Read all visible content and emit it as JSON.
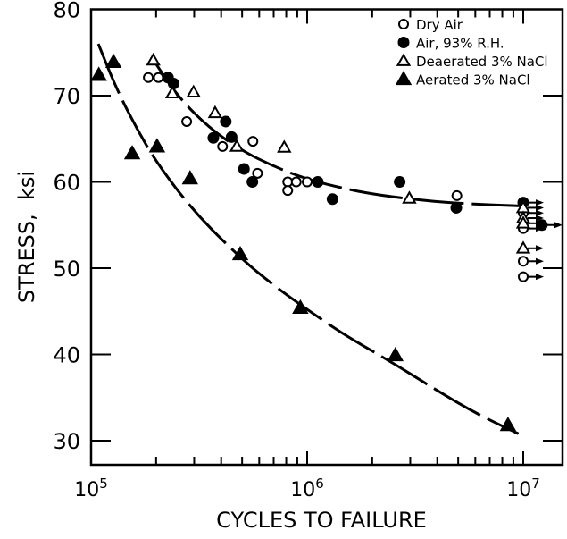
{
  "chart_data": {
    "type": "scatter",
    "title": "",
    "xlabel": "CYCLES TO FAILURE",
    "ylabel": "STRESS,  ksi",
    "xscale": "log",
    "xlim": [
      100000,
      15500000
    ],
    "ylim": [
      27.2,
      80
    ],
    "x_ticks": [
      {
        "value": 100000,
        "base": "10",
        "exp": "5"
      },
      {
        "value": 1000000,
        "base": "10",
        "exp": "6"
      },
      {
        "value": 10000000,
        "base": "10",
        "exp": "7"
      }
    ],
    "y_ticks": [
      30,
      40,
      50,
      60,
      70,
      80
    ],
    "grid": false,
    "legend_position": "top-right",
    "series": [
      {
        "name": "Dry Air",
        "marker": "open-circle",
        "points": [
          [
            184000,
            72.1
          ],
          [
            205000,
            72.1
          ],
          [
            277000,
            67.0
          ],
          [
            406000,
            64.1
          ],
          [
            561000,
            64.7
          ],
          [
            589000,
            61.0
          ],
          [
            813000,
            60.0
          ],
          [
            813000,
            59.0
          ],
          [
            890000,
            60.0
          ],
          [
            1000000,
            60.0
          ],
          [
            4930000,
            58.4
          ]
        ],
        "runouts": [
          [
            10000000,
            56.4
          ],
          [
            10000000,
            54.6
          ],
          [
            10000000,
            50.8
          ],
          [
            10000000,
            49.0
          ]
        ]
      },
      {
        "name": "Air, 93% R.H.",
        "marker": "filled-circle",
        "points": [
          [
            227000,
            72.1
          ],
          [
            241000,
            71.4
          ],
          [
            420000,
            67.0
          ],
          [
            368000,
            65.1
          ],
          [
            447000,
            65.2
          ],
          [
            510000,
            61.5
          ],
          [
            558000,
            60.0
          ],
          [
            1120000,
            60.0
          ],
          [
            1310000,
            58.0
          ],
          [
            2680000,
            60.0
          ],
          [
            4900000,
            57.0
          ]
        ],
        "runouts": [
          [
            10000000,
            57.6
          ],
          [
            12200000,
            55.0
          ]
        ]
      },
      {
        "name": "Deaerated 3% NaCl",
        "marker": "open-triangle",
        "points": [
          [
            194000,
            74.1
          ],
          [
            238000,
            70.3
          ],
          [
            298000,
            70.4
          ],
          [
            375000,
            68.0
          ],
          [
            472000,
            64.1
          ],
          [
            783000,
            64.0
          ],
          [
            2970000,
            58.1
          ]
        ],
        "runouts": [
          [
            10000000,
            57.0
          ],
          [
            10000000,
            55.8
          ],
          [
            10000000,
            55.2
          ],
          [
            10000000,
            52.3
          ]
        ]
      },
      {
        "name": "Aerated 3% NaCl",
        "marker": "filled-triangle",
        "points": [
          [
            108600,
            72.4
          ],
          [
            127000,
            73.9
          ],
          [
            155000,
            63.3
          ],
          [
            202000,
            64.1
          ],
          [
            287000,
            60.4
          ],
          [
            490000,
            51.6
          ],
          [
            930000,
            45.4
          ],
          [
            2560000,
            39.9
          ],
          [
            8500000,
            31.8
          ]
        ],
        "runouts": []
      }
    ],
    "curves": [
      {
        "points": [
          [
            190000,
            74.5
          ],
          [
            250000,
            70.0
          ],
          [
            350000,
            66.3
          ],
          [
            500000,
            63.6
          ],
          [
            700000,
            61.8
          ],
          [
            1000000,
            60.3
          ],
          [
            1500000,
            59.2
          ],
          [
            2000000,
            58.6
          ],
          [
            3000000,
            58.0
          ],
          [
            5000000,
            57.5
          ],
          [
            10000000,
            57.2
          ]
        ]
      },
      {
        "points": [
          [
            108000,
            76.0
          ],
          [
            130000,
            71.0
          ],
          [
            160000,
            66.5
          ],
          [
            200000,
            62.3
          ],
          [
            300000,
            56.5
          ],
          [
            500000,
            51.0
          ],
          [
            700000,
            48.0
          ],
          [
            1000000,
            45.2
          ],
          [
            1500000,
            42.2
          ],
          [
            2500000,
            39.0
          ],
          [
            4000000,
            35.8
          ],
          [
            6000000,
            33.2
          ],
          [
            9500000,
            30.8
          ]
        ]
      }
    ]
  }
}
